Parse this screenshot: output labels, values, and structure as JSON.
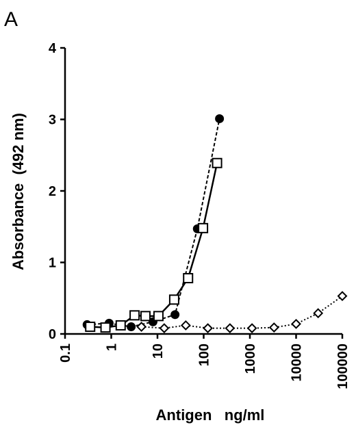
{
  "panel_label": "A",
  "chart_data": {
    "type": "line",
    "title": "",
    "xlabel": "Antigen ng/ml",
    "ylabel": "Absorbance (492 nm)",
    "xscale": "log",
    "xlim": [
      0.1,
      100000
    ],
    "ylim": [
      0,
      4
    ],
    "x_ticks": [
      0.1,
      1,
      10,
      100,
      1000,
      10000,
      100000
    ],
    "x_tick_labels": [
      "0.1",
      "1",
      "10",
      "100",
      "1000",
      "10000",
      "100000"
    ],
    "y_ticks": [
      0,
      1,
      2,
      3,
      4
    ],
    "y_tick_labels": [
      "0",
      "1",
      "2",
      "3",
      "4"
    ],
    "grid": false,
    "legend": "none",
    "series": [
      {
        "marker": "filled-circle",
        "line_style": "dashed",
        "color": "#000000",
        "x": [
          0.3,
          0.9,
          2.7,
          8,
          24,
          73,
          220
        ],
        "y": [
          0.13,
          0.15,
          0.1,
          0.17,
          0.27,
          1.47,
          3.01
        ]
      },
      {
        "marker": "open-square",
        "line_style": "solid",
        "color": "#000000",
        "x": [
          0.35,
          0.75,
          1.6,
          3.2,
          5.5,
          10.5,
          23,
          46,
          97,
          195
        ],
        "y": [
          0.1,
          0.09,
          0.12,
          0.26,
          0.25,
          0.25,
          0.48,
          0.78,
          1.48,
          2.39
        ]
      },
      {
        "marker": "open-diamond",
        "line_style": "dotted",
        "color": "#000000",
        "x": [
          4.5,
          14,
          41,
          123,
          370,
          1111,
          3333,
          10000,
          30000,
          100000
        ],
        "y": [
          0.1,
          0.08,
          0.12,
          0.08,
          0.08,
          0.08,
          0.09,
          0.14,
          0.29,
          0.53
        ]
      }
    ]
  }
}
